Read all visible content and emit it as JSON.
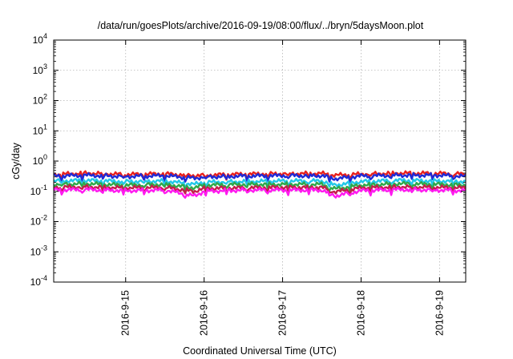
{
  "chart_data": {
    "type": "line",
    "title": "/data/run/goesPlots/archive/2016-09-19/08:00/flux/../bryn/5daysMoon.plot",
    "xlabel": "Coordinated Universal Time (UTC)",
    "ylabel": "cGy/day",
    "yscale": "log",
    "ylim": [
      0.0001,
      10000
    ],
    "xlim": [
      "2016-09-14 02:00",
      "2016-09-19 08:00"
    ],
    "grid": true,
    "legend": "none",
    "xticks": [
      "2016-9-15",
      "2016-9-16",
      "2016-9-17",
      "2016-9-18",
      "2016-9-19"
    ],
    "yticks": [
      {
        "value": 0.0001,
        "base": "10",
        "exp": "-4"
      },
      {
        "value": 0.001,
        "base": "10",
        "exp": "-3"
      },
      {
        "value": 0.01,
        "base": "10",
        "exp": "-2"
      },
      {
        "value": 0.1,
        "base": "10",
        "exp": "-1"
      },
      {
        "value": 1,
        "base": "10",
        "exp": "0"
      },
      {
        "value": 10,
        "base": "10",
        "exp": "1"
      },
      {
        "value": 100,
        "base": "10",
        "exp": "2"
      },
      {
        "value": 1000,
        "base": "10",
        "exp": "3"
      },
      {
        "value": 10000,
        "base": "10",
        "exp": "4"
      }
    ],
    "series": [
      {
        "color": "#e8201c",
        "x": [
          "2016-09-14 02:00",
          "2016-09-14 12:00",
          "2016-09-15 00:00",
          "2016-09-15 12:00",
          "2016-09-15 21:00",
          "2016-09-16 00:00",
          "2016-09-16 12:00",
          "2016-09-17 00:00",
          "2016-09-17 12:00",
          "2016-09-17 16:00",
          "2016-09-18 00:00",
          "2016-09-18 12:00",
          "2016-09-19 00:00",
          "2016-09-19 08:00"
        ],
        "values": [
          0.36,
          0.4,
          0.36,
          0.38,
          0.33,
          0.34,
          0.37,
          0.38,
          0.39,
          0.34,
          0.37,
          0.4,
          0.39,
          0.37
        ]
      },
      {
        "color": "#1f2ad6",
        "x": [
          "2016-09-14 02:00",
          "2016-09-14 12:00",
          "2016-09-15 00:00",
          "2016-09-15 12:00",
          "2016-09-15 21:00",
          "2016-09-16 00:00",
          "2016-09-16 12:00",
          "2016-09-17 00:00",
          "2016-09-17 12:00",
          "2016-09-17 16:00",
          "2016-09-18 00:00",
          "2016-09-18 12:00",
          "2016-09-19 00:00",
          "2016-09-19 08:00"
        ],
        "values": [
          0.32,
          0.34,
          0.31,
          0.33,
          0.27,
          0.3,
          0.32,
          0.33,
          0.33,
          0.26,
          0.32,
          0.34,
          0.34,
          0.31
        ]
      },
      {
        "color": "#22c8e8",
        "x": [
          "2016-09-14 02:00",
          "2016-09-14 12:00",
          "2016-09-15 00:00",
          "2016-09-15 12:00",
          "2016-09-15 21:00",
          "2016-09-16 00:00",
          "2016-09-16 12:00",
          "2016-09-17 00:00",
          "2016-09-17 12:00",
          "2016-09-17 16:00",
          "2016-09-18 00:00",
          "2016-09-18 12:00",
          "2016-09-19 00:00",
          "2016-09-19 08:00"
        ],
        "values": [
          0.22,
          0.23,
          0.21,
          0.22,
          0.17,
          0.2,
          0.21,
          0.22,
          0.22,
          0.16,
          0.21,
          0.23,
          0.22,
          0.21
        ]
      },
      {
        "color": "#2fa84a",
        "x": [
          "2016-09-14 02:00",
          "2016-09-14 12:00",
          "2016-09-15 00:00",
          "2016-09-15 12:00",
          "2016-09-15 21:00",
          "2016-09-16 00:00",
          "2016-09-16 12:00",
          "2016-09-17 00:00",
          "2016-09-17 12:00",
          "2016-09-17 16:00",
          "2016-09-18 00:00",
          "2016-09-18 12:00",
          "2016-09-19 00:00",
          "2016-09-19 08:00"
        ],
        "values": [
          0.17,
          0.18,
          0.16,
          0.17,
          0.13,
          0.16,
          0.17,
          0.17,
          0.17,
          0.12,
          0.16,
          0.18,
          0.17,
          0.16
        ]
      },
      {
        "color": "#c41e4a",
        "x": [
          "2016-09-14 02:00",
          "2016-09-14 12:00",
          "2016-09-15 00:00",
          "2016-09-15 12:00",
          "2016-09-15 21:00",
          "2016-09-16 00:00",
          "2016-09-16 12:00",
          "2016-09-17 00:00",
          "2016-09-17 12:00",
          "2016-09-17 16:00",
          "2016-09-18 00:00",
          "2016-09-18 12:00",
          "2016-09-19 00:00",
          "2016-09-19 08:00"
        ],
        "values": [
          0.135,
          0.14,
          0.13,
          0.135,
          0.1,
          0.125,
          0.13,
          0.135,
          0.135,
          0.095,
          0.13,
          0.14,
          0.135,
          0.13
        ]
      },
      {
        "color": "#ff1af0",
        "x": [
          "2016-09-14 02:00",
          "2016-09-14 12:00",
          "2016-09-15 00:00",
          "2016-09-15 12:00",
          "2016-09-15 21:00",
          "2016-09-16 00:00",
          "2016-09-16 12:00",
          "2016-09-17 00:00",
          "2016-09-17 12:00",
          "2016-09-17 16:00",
          "2016-09-18 00:00",
          "2016-09-18 12:00",
          "2016-09-19 00:00",
          "2016-09-19 08:00"
        ],
        "values": [
          0.11,
          0.115,
          0.105,
          0.11,
          0.07,
          0.1,
          0.11,
          0.11,
          0.11,
          0.07,
          0.105,
          0.115,
          0.11,
          0.105
        ]
      }
    ]
  }
}
